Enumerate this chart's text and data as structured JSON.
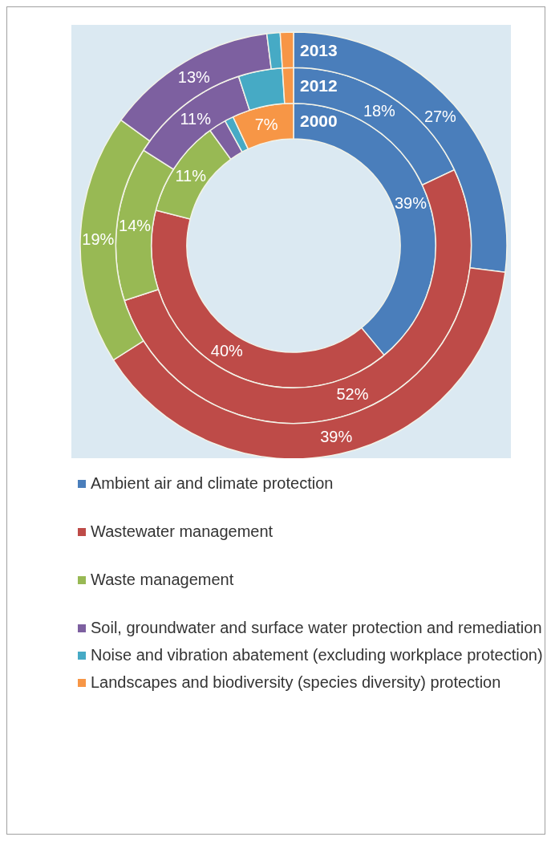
{
  "chart_data": {
    "type": "donut",
    "categories": [
      "Ambient air and climate protection",
      "Wastewater management",
      "Waste management",
      "Soil, groundwater and surface water protection and remediation",
      "Noise and vibration abatement (excluding workplace protection)",
      "Landscapes and biodiversity (species diversity) protection"
    ],
    "colors": [
      "#4a7ebb",
      "#be4b48",
      "#98b954",
      "#7d60a0",
      "#46aac5",
      "#f79646"
    ],
    "series": [
      {
        "name": "2000",
        "values": [
          39,
          40,
          11,
          2,
          1,
          7
        ],
        "value_labels": [
          "39%",
          "40%",
          "11%",
          null,
          null,
          "7%"
        ]
      },
      {
        "name": "2012",
        "values": [
          18,
          52,
          14,
          11,
          4,
          1
        ],
        "value_labels": [
          "18%",
          "52%",
          "14%",
          "11%",
          null,
          null
        ]
      },
      {
        "name": "2013",
        "values": [
          27,
          39,
          19,
          13,
          1,
          1
        ],
        "value_labels": [
          "27%",
          "39%",
          "19%",
          "13%",
          null,
          null
        ]
      }
    ],
    "legend": "bottom"
  }
}
